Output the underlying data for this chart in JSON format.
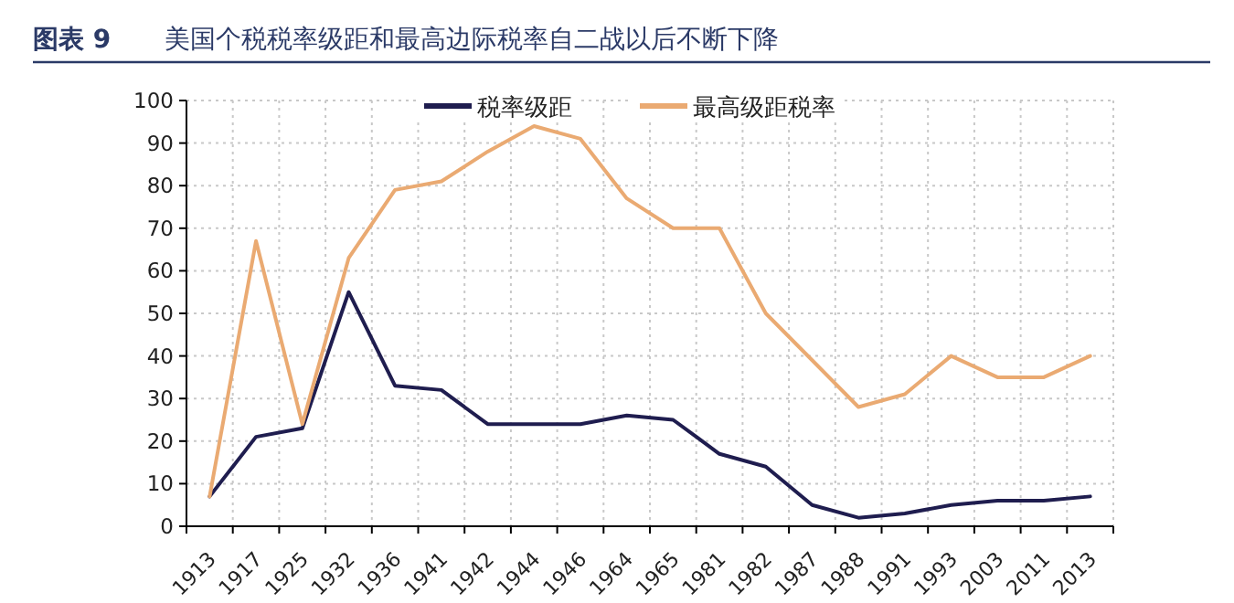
{
  "chart_data": {
    "type": "line",
    "title": "美国个税税率级距和最高边际税率自二战以后不断下降",
    "annotations": [
      "图表 9"
    ],
    "categories": [
      "1913",
      "1917",
      "1925",
      "1932",
      "1936",
      "1941",
      "1942",
      "1944",
      "1946",
      "1964",
      "1965",
      "1981",
      "1982",
      "1987",
      "1988",
      "1991",
      "1993",
      "2003",
      "2011",
      "2013"
    ],
    "series": [
      {
        "name": "税率级距",
        "color": "#1f1d4f",
        "values": [
          7,
          21,
          23,
          55,
          33,
          32,
          24,
          24,
          24,
          26,
          25,
          17,
          14,
          5,
          2,
          3,
          5,
          6,
          6,
          7
        ]
      },
      {
        "name": "最高级距税率",
        "color": "#eaaa72",
        "values": [
          7,
          67,
          24,
          63,
          79,
          81,
          88,
          94,
          91,
          77,
          70,
          70,
          50,
          39,
          28,
          31,
          40,
          35,
          35,
          40
        ]
      }
    ],
    "ylim": [
      0,
      100
    ],
    "yticks": [
      0,
      10,
      20,
      30,
      40,
      50,
      60,
      70,
      80,
      90,
      100
    ],
    "grid": true,
    "legend": "top",
    "marker": "none",
    "line_style": "solid"
  }
}
